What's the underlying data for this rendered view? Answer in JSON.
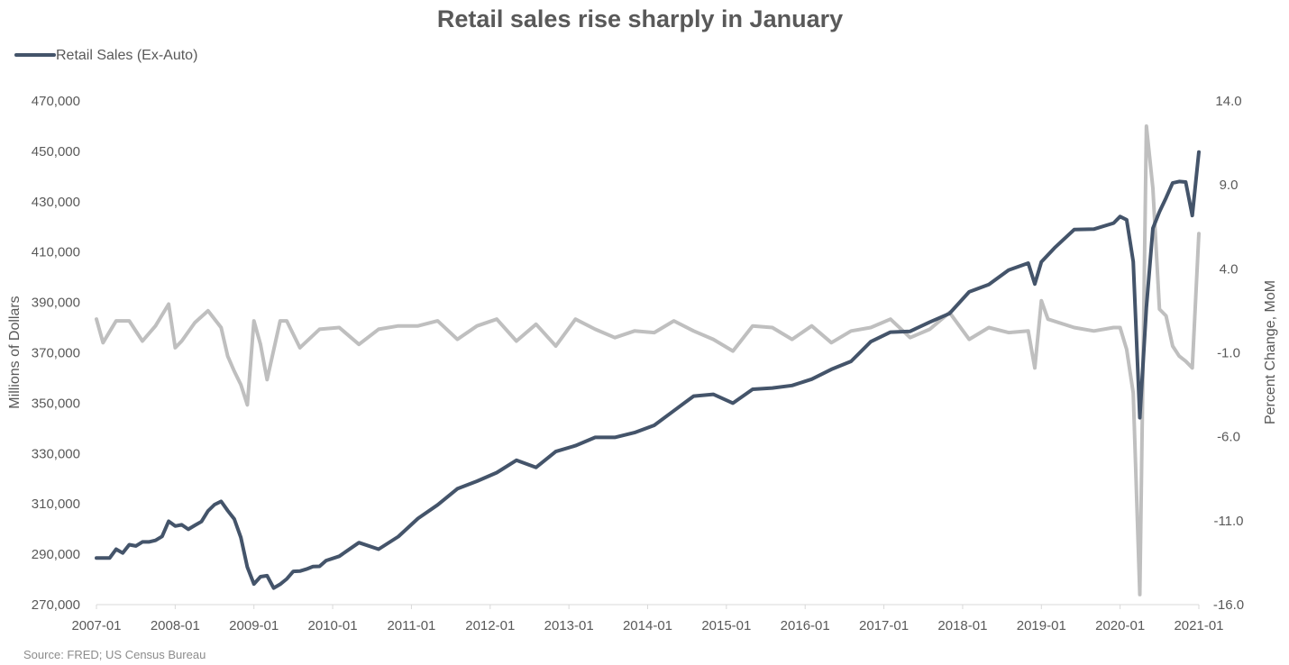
{
  "chart_data": {
    "type": "line",
    "title": "Retail sales rise sharply in January",
    "source": "Source: FRED; US Census Bureau",
    "legend": {
      "position": "top-left",
      "entries": [
        "Retail Sales (Ex-Auto)"
      ]
    },
    "grid": false,
    "x_tick_labels": [
      "2007-01",
      "2008-01",
      "2009-01",
      "2010-01",
      "2011-01",
      "2012-01",
      "2013-01",
      "2014-01",
      "2015-01",
      "2016-01",
      "2017-01",
      "2018-01",
      "2019-01",
      "2020-01",
      "2021-01"
    ],
    "y_left": {
      "label": "Millions of Dollars",
      "range": [
        270000,
        470000
      ],
      "ticks": [
        "270,000",
        "290,000",
        "310,000",
        "330,000",
        "350,000",
        "370,000",
        "390,000",
        "410,000",
        "430,000",
        "450,000",
        "470,000"
      ]
    },
    "y_right": {
      "label": "Percent Change, MoM",
      "range": [
        -16,
        14
      ],
      "ticks": [
        "-16.0",
        "-11.0",
        "-6.0",
        "-1.0",
        "4.0",
        "9.0",
        "14.0"
      ]
    },
    "series": [
      {
        "name": "Retail Sales (Ex-Auto)",
        "axis": "left",
        "color": "#44546a",
        "x": [
          "2007-01",
          "2007-02",
          "2007-03",
          "2007-04",
          "2007-05",
          "2007-06",
          "2007-07",
          "2007-08",
          "2007-09",
          "2007-10",
          "2007-11",
          "2007-12",
          "2008-01",
          "2008-02",
          "2008-03",
          "2008-04",
          "2008-05",
          "2008-06",
          "2008-07",
          "2008-08",
          "2008-09",
          "2008-10",
          "2008-11",
          "2008-12",
          "2009-01",
          "2009-02",
          "2009-03",
          "2009-04",
          "2009-05",
          "2009-06",
          "2009-07",
          "2009-08",
          "2009-09",
          "2009-10",
          "2009-11",
          "2009-12",
          "2010-02",
          "2010-05",
          "2010-08",
          "2010-11",
          "2011-02",
          "2011-05",
          "2011-08",
          "2011-11",
          "2012-02",
          "2012-05",
          "2012-08",
          "2012-11",
          "2013-02",
          "2013-05",
          "2013-08",
          "2013-11",
          "2014-02",
          "2014-05",
          "2014-08",
          "2014-11",
          "2015-02",
          "2015-05",
          "2015-08",
          "2015-11",
          "2016-02",
          "2016-05",
          "2016-08",
          "2016-11",
          "2017-02",
          "2017-05",
          "2017-08",
          "2017-11",
          "2018-02",
          "2018-05",
          "2018-08",
          "2018-11",
          "2018-12",
          "2019-01",
          "2019-03",
          "2019-06",
          "2019-09",
          "2019-12",
          "2020-01",
          "2020-02",
          "2020-03",
          "2020-04",
          "2020-05",
          "2020-06",
          "2020-07",
          "2020-08",
          "2020-09",
          "2020-10",
          "2020-11",
          "2020-12",
          "2021-01"
        ],
        "values": [
          288500,
          288500,
          288500,
          292000,
          290500,
          293800,
          293300,
          294900,
          294900,
          295500,
          297100,
          303100,
          301200,
          301700,
          299900,
          301500,
          303000,
          307200,
          309700,
          311000,
          307300,
          304000,
          296700,
          284900,
          278200,
          281100,
          281500,
          276600,
          278100,
          280200,
          283200,
          283300,
          284100,
          285100,
          285200,
          287500,
          289200,
          294600,
          292000,
          297000,
          304200,
          309600,
          316000,
          319000,
          322400,
          327300,
          324500,
          330800,
          333100,
          336400,
          336400,
          338300,
          341200,
          347000,
          352800,
          353500,
          350000,
          355500,
          356000,
          357000,
          359500,
          363400,
          366600,
          374400,
          378200,
          378500,
          382200,
          385600,
          394200,
          397100,
          402800,
          405600,
          397300,
          406100,
          411600,
          418900,
          419100,
          421500,
          424100,
          422800,
          406200,
          344200,
          388100,
          419400,
          426000,
          431500,
          437400,
          438000,
          437800,
          424500,
          449700
        ]
      },
      {
        "name": "Percent Change, MoM",
        "axis": "right",
        "color": "#bfbfbf",
        "x": [
          "2007-01",
          "2007-02",
          "2007-04",
          "2007-06",
          "2007-08",
          "2007-10",
          "2007-12",
          "2008-01",
          "2008-02",
          "2008-04",
          "2008-06",
          "2008-08",
          "2008-09",
          "2008-10",
          "2008-11",
          "2008-12",
          "2009-01",
          "2009-02",
          "2009-03",
          "2009-05",
          "2009-06",
          "2009-08",
          "2009-11",
          "2010-02",
          "2010-05",
          "2010-08",
          "2010-11",
          "2011-02",
          "2011-05",
          "2011-08",
          "2011-11",
          "2012-02",
          "2012-05",
          "2012-08",
          "2012-11",
          "2013-02",
          "2013-05",
          "2013-08",
          "2013-11",
          "2014-02",
          "2014-05",
          "2014-08",
          "2014-11",
          "2015-02",
          "2015-05",
          "2015-08",
          "2015-11",
          "2016-02",
          "2016-05",
          "2016-08",
          "2016-11",
          "2017-02",
          "2017-05",
          "2017-08",
          "2017-11",
          "2018-02",
          "2018-05",
          "2018-08",
          "2018-11",
          "2018-12",
          "2019-01",
          "2019-02",
          "2019-06",
          "2019-09",
          "2019-12",
          "2020-01",
          "2020-02",
          "2020-03",
          "2020-04",
          "2020-05",
          "2020-06",
          "2020-07",
          "2020-08",
          "2020-09",
          "2020-10",
          "2020-11",
          "2020-12",
          "2021-01"
        ],
        "values": [
          1.0,
          -0.4,
          0.9,
          0.9,
          -0.3,
          0.6,
          1.9,
          -0.7,
          -0.3,
          0.8,
          1.5,
          0.5,
          -1.2,
          -2.1,
          -2.9,
          -4.1,
          0.9,
          -0.5,
          -2.6,
          0.9,
          0.9,
          -0.7,
          0.4,
          0.5,
          -0.5,
          0.4,
          0.6,
          0.6,
          0.9,
          -0.2,
          0.6,
          1.0,
          -0.3,
          0.7,
          -0.6,
          1.0,
          0.4,
          -0.1,
          0.3,
          0.2,
          0.9,
          0.3,
          -0.2,
          -0.9,
          0.6,
          0.5,
          -0.2,
          0.6,
          -0.4,
          0.3,
          0.5,
          1.0,
          -0.1,
          0.4,
          1.4,
          -0.2,
          0.5,
          0.2,
          0.3,
          -1.9,
          2.1,
          1.0,
          0.5,
          0.3,
          0.5,
          0.5,
          -0.8,
          -3.4,
          -15.4,
          12.5,
          8.8,
          1.6,
          1.2,
          -0.6,
          -1.2,
          -1.5,
          -1.9,
          6.1
        ]
      }
    ]
  }
}
